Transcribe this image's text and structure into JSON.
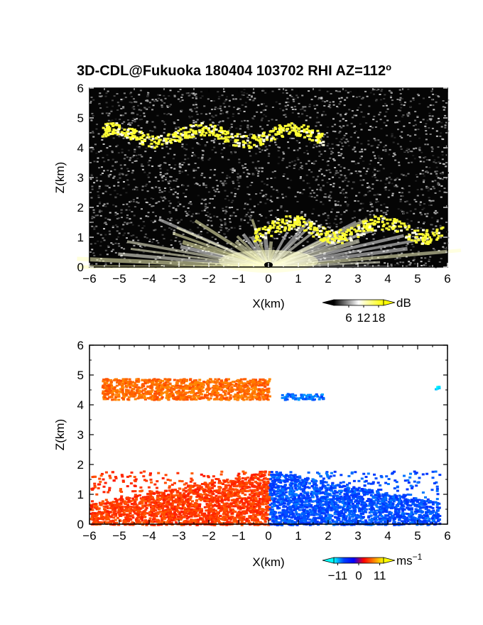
{
  "chart_data": [
    {
      "type": "heatmap",
      "panel": "reflectivity",
      "title": "3D-CDL@Fukuoka 180404 103702 RHI AZ=112",
      "title_superscript": "o",
      "xlabel": "X(km)",
      "ylabel": "Z(km)",
      "xlim": [
        -6,
        6
      ],
      "ylim": [
        0,
        6
      ],
      "xticks": [
        "-6",
        "-5",
        "-4",
        "-3",
        "-2",
        "-1",
        "0",
        "1",
        "2",
        "3",
        "4",
        "5",
        "6"
      ],
      "yticks": [
        "0",
        "1",
        "2",
        "3",
        "4",
        "5",
        "6"
      ],
      "colorbar": {
        "unit": "dB",
        "ticks": [
          "6",
          "12",
          "18"
        ],
        "range": [
          0,
          20
        ],
        "colors": [
          "#000000",
          "#ffffff",
          "#ffff00"
        ]
      },
      "features": [
        {
          "name": "upper cloud layer",
          "x": [
            -5.6,
            1.8
          ],
          "z": [
            4.2,
            4.9
          ],
          "value_db": 18
        },
        {
          "name": "lower cloud layer",
          "x": [
            -0.5,
            5.8
          ],
          "z": [
            1.0,
            1.8
          ],
          "value_db": 18
        },
        {
          "name": "near-range clutter fan",
          "x": [
            -6,
            6
          ],
          "z": [
            0,
            1.6
          ],
          "value_db": 10
        }
      ]
    },
    {
      "type": "heatmap",
      "panel": "doppler velocity",
      "xlabel": "X(km)",
      "ylabel": "Z(km)",
      "xlim": [
        -6,
        6
      ],
      "ylim": [
        0,
        6
      ],
      "xticks": [
        "-6",
        "-5",
        "-4",
        "-3",
        "-2",
        "-1",
        "0",
        "1",
        "2",
        "3",
        "4",
        "5",
        "6"
      ],
      "yticks": [
        "0",
        "1",
        "2",
        "3",
        "4",
        "5",
        "6"
      ],
      "colorbar": {
        "unit": "ms",
        "unit_superscript": "-1",
        "ticks": [
          "-11",
          "0",
          "11"
        ],
        "range": [
          -13,
          13
        ],
        "colors": [
          "#00ffff",
          "#0040ff",
          "#0000ff",
          "#ff0000",
          "#ff8000",
          "#ffff00"
        ]
      },
      "features": [
        {
          "name": "upper layer west (receding)",
          "x": [
            -5.6,
            0.0
          ],
          "z": [
            4.2,
            4.9
          ],
          "velocity": 7
        },
        {
          "name": "upper layer east (approaching)",
          "x": [
            0.4,
            1.8
          ],
          "z": [
            4.2,
            4.4
          ],
          "velocity": -9
        },
        {
          "name": "lower layer west (receding)",
          "x": [
            -6.0,
            0.0
          ],
          "z": [
            0,
            1.8
          ],
          "velocity": 5
        },
        {
          "name": "lower layer east (approaching)",
          "x": [
            0.0,
            5.7
          ],
          "z": [
            0,
            1.8
          ],
          "velocity": -8
        },
        {
          "name": "isolated echo",
          "x": [
            5.5,
            5.7
          ],
          "z": [
            4.55,
            4.65
          ],
          "velocity": -12
        }
      ]
    }
  ]
}
